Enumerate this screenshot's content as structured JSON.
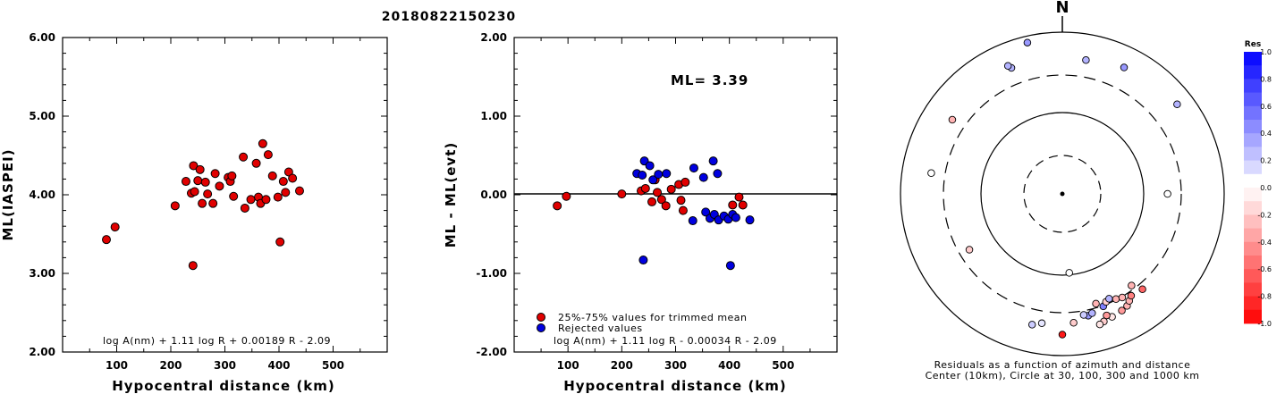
{
  "chart_data": [
    {
      "type": "scatter",
      "title": "20180822150230",
      "xlabel": "Hypocentral distance (km)",
      "ylabel": "ML(IASPEI)",
      "xlim": [
        0,
        600
      ],
      "ylim": [
        2.0,
        6.0
      ],
      "xticks": [
        100,
        200,
        300,
        400,
        500
      ],
      "yticks": [
        2.0,
        3.0,
        4.0,
        5.0,
        6.0
      ],
      "ytick_labels": [
        "2.00",
        "3.00",
        "4.00",
        "5.00",
        "6.00"
      ],
      "annotation": "log A(nm) + 1.11 log R + 0.00189 R - 2.09",
      "marker_color": "#e00000",
      "points": [
        {
          "x": 81,
          "y": 3.43
        },
        {
          "x": 97,
          "y": 3.59
        },
        {
          "x": 208,
          "y": 3.86
        },
        {
          "x": 228,
          "y": 4.17
        },
        {
          "x": 238,
          "y": 4.02
        },
        {
          "x": 242,
          "y": 4.37
        },
        {
          "x": 244,
          "y": 4.04
        },
        {
          "x": 250,
          "y": 4.18
        },
        {
          "x": 254,
          "y": 4.32
        },
        {
          "x": 258,
          "y": 3.89
        },
        {
          "x": 264,
          "y": 4.16
        },
        {
          "x": 268,
          "y": 4.01
        },
        {
          "x": 278,
          "y": 3.89
        },
        {
          "x": 282,
          "y": 4.27
        },
        {
          "x": 290,
          "y": 4.11
        },
        {
          "x": 306,
          "y": 4.22
        },
        {
          "x": 310,
          "y": 4.17
        },
        {
          "x": 313,
          "y": 4.24
        },
        {
          "x": 316,
          "y": 3.98
        },
        {
          "x": 334,
          "y": 4.48
        },
        {
          "x": 337,
          "y": 3.83
        },
        {
          "x": 348,
          "y": 3.94
        },
        {
          "x": 358,
          "y": 4.4
        },
        {
          "x": 362,
          "y": 3.97
        },
        {
          "x": 366,
          "y": 3.89
        },
        {
          "x": 370,
          "y": 4.65
        },
        {
          "x": 376,
          "y": 3.94
        },
        {
          "x": 380,
          "y": 4.51
        },
        {
          "x": 388,
          "y": 4.24
        },
        {
          "x": 398,
          "y": 3.97
        },
        {
          "x": 408,
          "y": 4.17
        },
        {
          "x": 412,
          "y": 4.03
        },
        {
          "x": 418,
          "y": 4.29
        },
        {
          "x": 425,
          "y": 4.21
        },
        {
          "x": 438,
          "y": 4.05
        },
        {
          "x": 402,
          "y": 3.4
        },
        {
          "x": 241,
          "y": 3.1
        }
      ]
    },
    {
      "type": "scatter",
      "xlabel": "Hypocentral distance (km)",
      "ylabel": "ML - ML(evt)",
      "xlim": [
        0,
        600
      ],
      "ylim": [
        -2.0,
        2.0
      ],
      "xticks": [
        100,
        200,
        300,
        400,
        500
      ],
      "yticks": [
        -2.0,
        -1.0,
        0.0,
        1.0,
        2.0
      ],
      "ytick_labels": [
        "-2.00",
        "-1.00",
        "0.00",
        "1.00",
        "2.00"
      ],
      "ml_label": "ML=  3.39",
      "legend": [
        "25%-75% values for trimmed mean",
        "Rejected values"
      ],
      "annotation": "log A(nm) + 1.11 log R - 0.00034 R - 2.09",
      "colors": {
        "trimmed": "#e00000",
        "rejected": "#0000e0"
      },
      "series": [
        {
          "name": "25%-75% values for trimmed mean",
          "points": [
            {
              "x": 80,
              "y": -0.14
            },
            {
              "x": 97,
              "y": -0.02
            },
            {
              "x": 200,
              "y": 0.01
            },
            {
              "x": 236,
              "y": 0.05
            },
            {
              "x": 244,
              "y": 0.08
            },
            {
              "x": 256,
              "y": -0.09
            },
            {
              "x": 262,
              "y": 0.19
            },
            {
              "x": 266,
              "y": 0.03
            },
            {
              "x": 274,
              "y": -0.06
            },
            {
              "x": 282,
              "y": -0.14
            },
            {
              "x": 292,
              "y": 0.07
            },
            {
              "x": 306,
              "y": 0.13
            },
            {
              "x": 310,
              "y": -0.07
            },
            {
              "x": 314,
              "y": -0.2
            },
            {
              "x": 318,
              "y": 0.16
            },
            {
              "x": 406,
              "y": -0.13
            },
            {
              "x": 418,
              "y": -0.03
            },
            {
              "x": 425,
              "y": -0.13
            }
          ]
        },
        {
          "name": "Rejected values",
          "points": [
            {
              "x": 228,
              "y": 0.27
            },
            {
              "x": 238,
              "y": 0.25
            },
            {
              "x": 242,
              "y": 0.43
            },
            {
              "x": 252,
              "y": 0.37
            },
            {
              "x": 258,
              "y": 0.19
            },
            {
              "x": 268,
              "y": 0.26
            },
            {
              "x": 283,
              "y": 0.27
            },
            {
              "x": 334,
              "y": 0.34
            },
            {
              "x": 352,
              "y": 0.22
            },
            {
              "x": 370,
              "y": 0.43
            },
            {
              "x": 378,
              "y": 0.27
            },
            {
              "x": 356,
              "y": -0.22
            },
            {
              "x": 364,
              "y": -0.3
            },
            {
              "x": 372,
              "y": -0.25
            },
            {
              "x": 380,
              "y": -0.32
            },
            {
              "x": 390,
              "y": -0.27
            },
            {
              "x": 398,
              "y": -0.31
            },
            {
              "x": 406,
              "y": -0.25
            },
            {
              "x": 412,
              "y": -0.29
            },
            {
              "x": 438,
              "y": -0.32
            },
            {
              "x": 332,
              "y": -0.33
            },
            {
              "x": 240,
              "y": -0.83
            },
            {
              "x": 402,
              "y": -0.9
            }
          ]
        }
      ]
    },
    {
      "type": "scatter",
      "projection": "polar-azimuth",
      "north_label": "N",
      "rings_km": [
        30,
        100,
        300,
        1000
      ],
      "caption": [
        "Residuals as a function of azimuth and distance",
        "Center (10km), Circle at 30, 100, 300 and 1000 km"
      ],
      "colorbar": {
        "title": "Res",
        "range": [
          -1.0,
          1.0
        ],
        "labels": [
          "1.0",
          "0.8",
          "0.6",
          "0.4",
          "0.2",
          "0.0",
          "-0.2",
          "-0.4",
          "-0.6",
          "-0.8",
          "-1.0"
        ]
      },
      "stations": [
        {
          "az": 279,
          "r": 0.82,
          "res": 0.0
        },
        {
          "az": 90,
          "r": 0.65,
          "res": 0.0
        },
        {
          "az": 175,
          "r": 0.49,
          "res": 0.0
        },
        {
          "az": 304,
          "r": 0.82,
          "res": -0.3
        },
        {
          "az": 239,
          "r": 0.67,
          "res": -0.2
        },
        {
          "az": 338,
          "r": 0.84,
          "res": 0.3
        },
        {
          "az": 337,
          "r": 0.86,
          "res": 0.3
        },
        {
          "az": 347,
          "r": 0.96,
          "res": 0.4
        },
        {
          "az": 26,
          "r": 0.87,
          "res": 0.4
        },
        {
          "az": 10,
          "r": 0.84,
          "res": 0.3
        },
        {
          "az": 52,
          "r": 0.9,
          "res": 0.3
        },
        {
          "az": 193,
          "r": 0.83,
          "res": 0.2
        },
        {
          "az": 189,
          "r": 0.81,
          "res": 0.1
        },
        {
          "az": 180,
          "r": 0.87,
          "res": -0.9
        },
        {
          "az": 175,
          "r": 0.8,
          "res": -0.2
        },
        {
          "az": 168,
          "r": 0.77,
          "res": 0.4
        },
        {
          "az": 166,
          "r": 0.76,
          "res": 0.3
        },
        {
          "az": 163,
          "r": 0.71,
          "res": -0.3
        },
        {
          "az": 160,
          "r": 0.74,
          "res": 0.5
        },
        {
          "az": 158,
          "r": 0.72,
          "res": -0.2
        },
        {
          "az": 156,
          "r": 0.71,
          "res": 0.3
        },
        {
          "az": 153,
          "r": 0.73,
          "res": -0.3
        },
        {
          "az": 150,
          "r": 0.74,
          "res": -0.3
        },
        {
          "az": 158,
          "r": 0.82,
          "res": -0.1
        },
        {
          "az": 153,
          "r": 0.81,
          "res": -0.4
        },
        {
          "az": 150,
          "r": 0.8,
          "res": -0.3
        },
        {
          "az": 148,
          "r": 0.78,
          "res": -0.3
        },
        {
          "az": 146,
          "r": 0.76,
          "res": -0.5
        },
        {
          "az": 160,
          "r": 0.8,
          "res": -0.4
        },
        {
          "az": 162,
          "r": 0.83,
          "res": -0.2
        },
        {
          "az": 143,
          "r": 0.71,
          "res": -0.3
        },
        {
          "az": 140,
          "r": 0.77,
          "res": -0.6
        },
        {
          "az": 164,
          "r": 0.84,
          "res": -0.1
        },
        {
          "az": 170,
          "r": 0.76,
          "res": 0.2
        }
      ]
    }
  ]
}
